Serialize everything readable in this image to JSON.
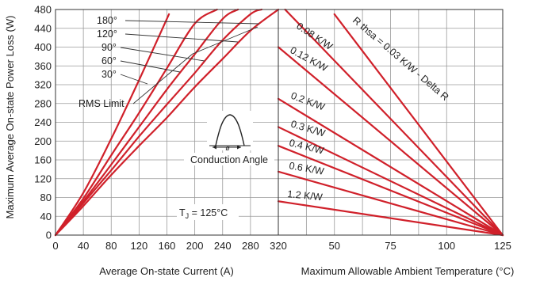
{
  "chart_data": [
    {
      "type": "line",
      "title": "",
      "xlabel": "Average On-state Current (A)",
      "ylabel": "Maximum Average On-state Power Loss (W)",
      "xlim": [
        0,
        320
      ],
      "ylim": [
        0,
        480
      ],
      "x_ticks": [
        0,
        40,
        80,
        120,
        160,
        200,
        240,
        280,
        320
      ],
      "y_ticks": [
        0,
        40,
        80,
        120,
        160,
        200,
        240,
        280,
        320,
        360,
        400,
        440,
        480
      ],
      "grid": true,
      "series": [
        {
          "name": "30°",
          "x": [
            0,
            40,
            80,
            120,
            163
          ],
          "y": [
            0,
            90,
            205,
            330,
            470
          ]
        },
        {
          "name": "60°",
          "x": [
            0,
            40,
            80,
            120,
            160,
            200,
            232
          ],
          "y": [
            0,
            78,
            170,
            260,
            355,
            450,
            480
          ]
        },
        {
          "name": "90°",
          "x": [
            0,
            40,
            80,
            120,
            160,
            200,
            240,
            262
          ],
          "y": [
            0,
            72,
            150,
            230,
            310,
            385,
            460,
            480
          ]
        },
        {
          "name": "120°",
          "x": [
            0,
            40,
            80,
            120,
            160,
            200,
            240,
            280,
            296
          ],
          "y": [
            0,
            68,
            138,
            210,
            278,
            345,
            415,
            470,
            480
          ]
        },
        {
          "name": "180°",
          "x": [
            0,
            40,
            80,
            120,
            160,
            200,
            240,
            280,
            320
          ],
          "y": [
            0,
            62,
            128,
            190,
            250,
            315,
            375,
            435,
            480
          ]
        }
      ],
      "annotations": {
        "rms_limit": "RMS Limit",
        "conduction_angle": "Conduction Angle",
        "angle_symbol": "ø",
        "tj_prefix": "T",
        "tj_sub": "J",
        "tj_value": " = 125°C"
      },
      "colors": {
        "curves": "#d0202a",
        "grid": "#9a9a9a"
      }
    },
    {
      "type": "line",
      "title": "",
      "xlabel": "Maximum Allowable Ambient Temperature (°C)",
      "ylabel": "",
      "xlim": [
        25,
        125
      ],
      "ylim": [
        0,
        480
      ],
      "x_ticks": [
        50,
        75,
        100,
        125
      ],
      "grid": true,
      "series": [
        {
          "name": "R thsa = 0.03 K/W - Delta R",
          "x": [
            50,
            125
          ],
          "y": [
            470,
            0
          ]
        },
        {
          "name": "0.08 K/W",
          "x": [
            28,
            125
          ],
          "y": [
            480,
            0
          ]
        },
        {
          "name": "0.12 K/W",
          "x": [
            25,
            125
          ],
          "y": [
            400,
            0
          ]
        },
        {
          "name": "0.2 K/W",
          "x": [
            25,
            125
          ],
          "y": [
            290,
            0
          ]
        },
        {
          "name": "0.3 K/W",
          "x": [
            25,
            125
          ],
          "y": [
            230,
            0
          ]
        },
        {
          "name": "0.4 K/W",
          "x": [
            25,
            125
          ],
          "y": [
            190,
            0
          ]
        },
        {
          "name": "0.6 K/W",
          "x": [
            25,
            125
          ],
          "y": [
            135,
            0
          ]
        },
        {
          "name": "1.2 K/W",
          "x": [
            25,
            125
          ],
          "y": [
            72,
            0
          ]
        }
      ],
      "curve_labels": [
        "R thsa = 0.03 K/W - Delta R",
        "0.08 K/W",
        "0.12 K/W",
        "0.2 K/W",
        "0.3 K/W",
        "0.4 K/W",
        "0.6 K/W",
        "1.2 K/W"
      ],
      "colors": {
        "curves": "#d0202a",
        "grid": "#9a9a9a"
      }
    }
  ]
}
